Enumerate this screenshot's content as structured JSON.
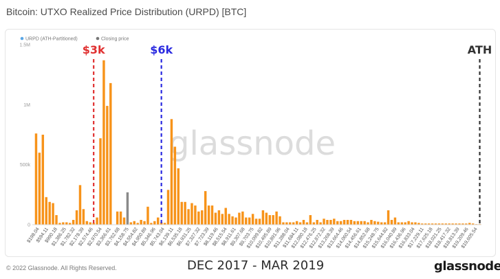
{
  "title": "Bitcoin: UTXO Realized Price Distribution (URPD) [BTC]",
  "footer": {
    "copyright": "© 2022 Glassnode. All Rights Reserved.",
    "period": "DEC 2017 - MAR 2019",
    "brand": "glassnode"
  },
  "watermark": "glassnode",
  "colors": {
    "bar": "#f7931a",
    "closing_bar": "#8a8a8a",
    "anno_3k": "#e03030",
    "anno_6k": "#2a2ae0",
    "anno_ath": "#333333",
    "legend_urpd": "#5aa7e6",
    "legend_closing": "#777777"
  },
  "chart_data": {
    "type": "bar",
    "title": "Bitcoin: UTXO Realized Price Distribution (URPD) [BTC]",
    "legend": {
      "placement": "top-left",
      "items": [
        {
          "name": "URPD (ATH-Partitioned)",
          "color": "#5aa7e6"
        },
        {
          "name": "Closing price",
          "color": "#777777"
        }
      ]
    },
    "y_ticks": [
      "0",
      "500k",
      "1M",
      "1.5M"
    ],
    "ylim": [
      0,
      1500000
    ],
    "grid": false,
    "x_tick_labels": [
      "$198.04",
      "$594.11",
      "$990.18",
      "$1,386.25",
      "$1,782.32",
      "$2,178.39",
      "$2,574.46",
      "$2,970.54",
      "$3,366.61",
      "$3,762.68",
      "$4,158.75",
      "$4,554.82",
      "$4,950.89",
      "$5,346.96",
      "$5,743.04",
      "$6,139.11",
      "$6,535.18",
      "$6,931.25",
      "$7,327.32",
      "$7,723.39",
      "$8,119.46",
      "$8,515.54",
      "$8,911.61",
      "$9,307.68",
      "$9,703.75",
      "$10,099.82",
      "$10,495.89",
      "$10,891.96",
      "$11,288.04",
      "$11,684.11",
      "$12,080.18",
      "$12,476.25",
      "$12,872.32",
      "$13,268.39",
      "$13,664.46",
      "$14,060.54",
      "$14,456.61",
      "$14,852.68",
      "$15,248.75",
      "$15,644.82",
      "$16,040.89",
      "$16,436.96",
      "$16,833.04",
      "$17,229.11",
      "$17,625.18",
      "$18,021.25",
      "$18,417.32",
      "$18,813.39",
      "$19,209.46",
      "$19,605.54"
    ],
    "closing_index": 27,
    "values": [
      760000,
      600000,
      750000,
      230000,
      190000,
      180000,
      80000,
      15000,
      20000,
      20000,
      15000,
      40000,
      120000,
      330000,
      130000,
      30000,
      20000,
      15000,
      60000,
      720000,
      1370000,
      990000,
      1180000,
      0,
      110000,
      110000,
      60000,
      15000,
      20000,
      30000,
      15000,
      40000,
      30000,
      150000,
      15000,
      30000,
      60000,
      20000,
      15000,
      290000,
      880000,
      650000,
      470000,
      190000,
      190000,
      130000,
      180000,
      160000,
      110000,
      120000,
      280000,
      160000,
      160000,
      100000,
      120000,
      90000,
      140000,
      90000,
      70000,
      60000,
      100000,
      110000,
      60000,
      60000,
      90000,
      50000,
      50000,
      120000,
      100000,
      80000,
      80000,
      110000,
      70000,
      20000,
      20000,
      20000,
      20000,
      30000,
      20000,
      40000,
      20000,
      80000,
      20000,
      40000,
      20000,
      50000,
      40000,
      40000,
      50000,
      30000,
      30000,
      40000,
      40000,
      40000,
      30000,
      30000,
      30000,
      30000,
      20000,
      40000,
      30000,
      25000,
      20000,
      20000,
      120000,
      40000,
      60000,
      20000,
      20000,
      20000,
      30000,
      20000,
      20000,
      15000,
      10000,
      10000,
      10000,
      10000,
      10000,
      10000,
      10000,
      10000,
      10000,
      10000,
      10000,
      10000,
      10000,
      10000,
      15000,
      10000,
      5000,
      5000
    ],
    "closing_value": 270000,
    "annotations": [
      {
        "label": "$3k",
        "color": "#e03030",
        "at_bar": 17
      },
      {
        "label": "$6k",
        "color": "#2a2ae0",
        "at_bar": 37
      },
      {
        "label": "ATH",
        "color": "#333333",
        "at_bar": 131
      }
    ]
  }
}
